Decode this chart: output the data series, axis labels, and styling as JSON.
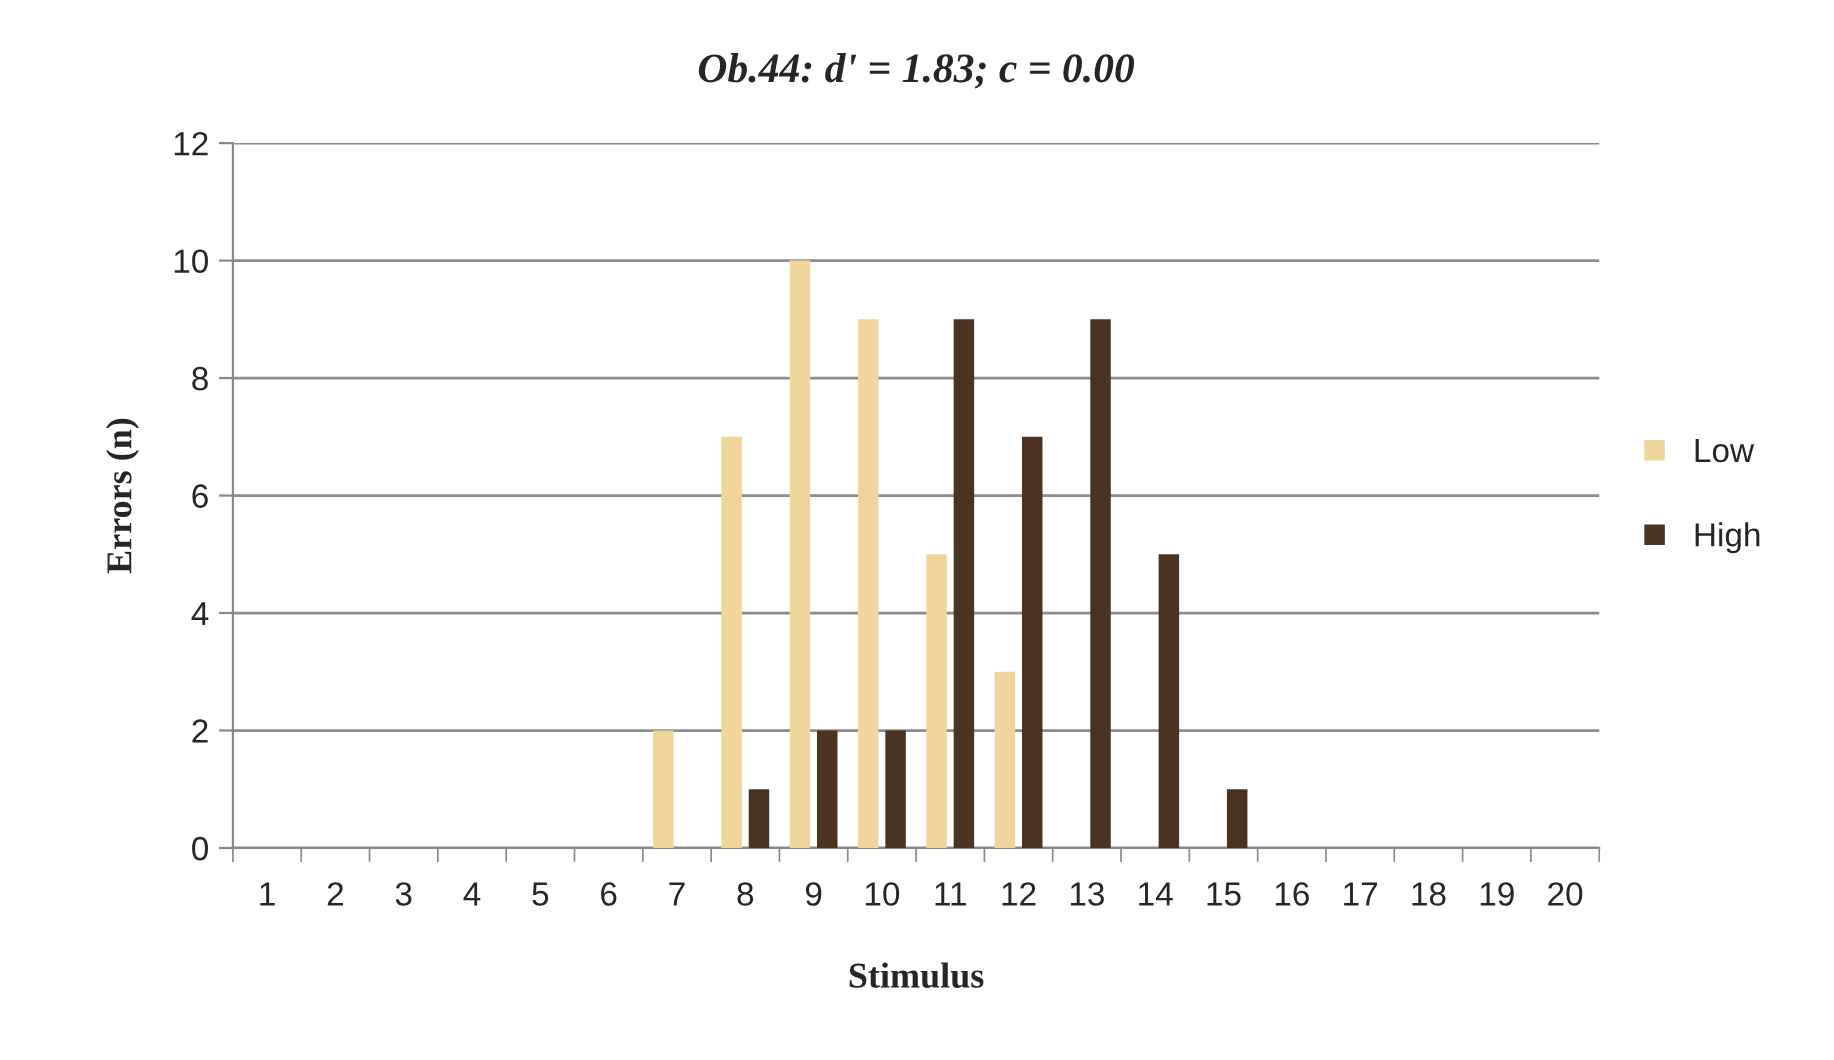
{
  "chart_data": {
    "type": "bar",
    "title": "Ob.44: d' = 1.83; c = 0.00",
    "xlabel": "Stimulus",
    "ylabel": "Errors (n)",
    "categories": [
      "1",
      "2",
      "3",
      "4",
      "5",
      "6",
      "7",
      "8",
      "9",
      "10",
      "11",
      "12",
      "13",
      "14",
      "15",
      "16",
      "17",
      "18",
      "19",
      "20"
    ],
    "series": [
      {
        "name": "Low",
        "color": "#efd59c",
        "values": [
          0,
          0,
          0,
          0,
          0,
          0,
          2,
          7,
          10,
          9,
          5,
          3,
          0,
          0,
          0,
          0,
          0,
          0,
          0,
          0
        ]
      },
      {
        "name": "High",
        "color": "#4b3322",
        "values": [
          0,
          0,
          0,
          0,
          0,
          0,
          0,
          1,
          2,
          2,
          9,
          7,
          9,
          5,
          1,
          0,
          0,
          0,
          0,
          0
        ]
      }
    ],
    "ylim": [
      0,
      12
    ],
    "yticks": [
      0,
      2,
      4,
      6,
      8,
      10,
      12
    ],
    "grid": "y",
    "legend": "right"
  }
}
